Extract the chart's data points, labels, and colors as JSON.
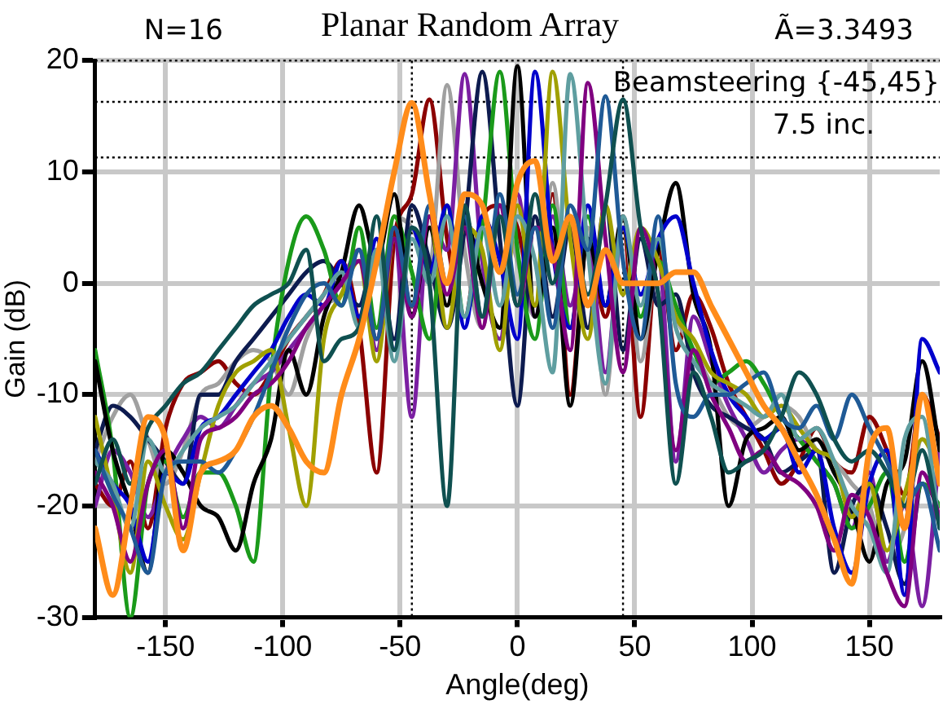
{
  "chart_data": {
    "type": "line",
    "title": "Planar Random Array",
    "xlabel": "Angle(deg)",
    "ylabel": "Gain (dB)",
    "annotations": [
      "N=16",
      "Ã=3.3493",
      "Beamsteering {-45,45}",
      "7.5 inc."
    ],
    "xlim": [
      -180,
      180
    ],
    "xticks": [
      -150,
      -100,
      -50,
      0,
      50,
      100,
      150
    ],
    "ylim": [
      -30,
      20
    ],
    "yticks": [
      -30,
      -20,
      -10,
      0,
      10,
      20
    ],
    "grid": true,
    "legend": false,
    "marker": "none",
    "line_style": "solid",
    "ref_lines": [
      {
        "axis": "y",
        "value": 20,
        "color": "#000000",
        "line_style": "dotted"
      },
      {
        "axis": "y",
        "value": 16.3,
        "color": "#000000",
        "line_style": "dotted"
      },
      {
        "axis": "y",
        "value": 11.3,
        "color": "#000000",
        "line_style": "dotted"
      },
      {
        "axis": "x",
        "value": -45,
        "color": "#000000",
        "line_style": "dotted"
      },
      {
        "axis": "x",
        "value": 45,
        "color": "#000000",
        "line_style": "dotted"
      }
    ],
    "x": [
      -180,
      -172.5,
      -165,
      -157.5,
      -150,
      -142.5,
      -135,
      -127.5,
      -120,
      -112.5,
      -105,
      -97.5,
      -90,
      -82.5,
      -75,
      -67.5,
      -60,
      -52.5,
      -45,
      -37.5,
      -30,
      -22.5,
      -15,
      -7.5,
      0,
      7.5,
      15,
      22.5,
      30,
      37.5,
      45,
      52.5,
      60,
      67.5,
      75,
      82.5,
      90,
      97.5,
      105,
      112.5,
      120,
      127.5,
      135,
      142.5,
      150,
      157.5,
      165,
      172.5,
      180
    ],
    "series": [
      {
        "color": "#8b0000",
        "values": [
          -18,
          -20,
          -16,
          -22,
          -13,
          -9,
          -8,
          -7,
          -9,
          -10,
          -8,
          -5,
          -3,
          -1,
          2,
          -4,
          -17,
          4,
          8,
          16.5,
          4,
          -3,
          6,
          7,
          5,
          -2,
          8,
          -10,
          4,
          -3,
          5,
          -12,
          3,
          -6,
          -1,
          -4,
          -9,
          -12,
          -15,
          -18,
          -16,
          -13,
          -16,
          -17,
          -12,
          -15,
          -19,
          -10,
          -14
        ]
      },
      {
        "color": "#a0a0a0",
        "values": [
          -16,
          -12,
          -10,
          -14,
          -18,
          -15,
          -10,
          -9,
          -7,
          -6,
          -7,
          -10,
          -5,
          -2,
          -1,
          3,
          -5,
          6,
          5,
          2,
          17.8,
          3,
          -4,
          7,
          2,
          -3,
          9,
          -4,
          5,
          -10,
          6,
          -7,
          2,
          -3,
          -6,
          -9,
          -12,
          -13,
          -12,
          -11,
          -12,
          -15,
          -16,
          -18,
          -20,
          -25,
          -22,
          -14,
          -16
        ]
      },
      {
        "color": "#7b1fa2",
        "values": [
          -20,
          -15,
          -17,
          -21,
          -17,
          -14,
          -12,
          -13,
          -11,
          -9,
          -8,
          -6,
          -4,
          -2,
          0,
          3,
          -6,
          4,
          -12,
          6,
          3,
          18.8,
          2,
          -5,
          8,
          -3,
          6,
          -2,
          4,
          -8,
          5,
          -1,
          2,
          -16,
          -3,
          -7,
          -11,
          -14,
          -17,
          -15,
          -14,
          -16,
          -18,
          -22,
          -17,
          -25,
          -20,
          -29,
          -15
        ]
      },
      {
        "color": "#0d1b4f",
        "values": [
          -15,
          -11,
          -12,
          -14,
          -16,
          -18,
          -10,
          -10,
          -7,
          -5,
          -3,
          -1,
          1,
          2,
          0,
          -2,
          3,
          -5,
          7,
          2,
          -4,
          5,
          19,
          4,
          -11,
          6,
          -3,
          5,
          -4,
          7,
          -6,
          4,
          -2,
          -1,
          -8,
          -11,
          -12,
          -13,
          -14,
          -17,
          -16,
          -15,
          -26,
          -20,
          -18,
          -22,
          -27,
          -18,
          -20
        ]
      },
      {
        "color": "#1a9a1a",
        "values": [
          -6,
          -15,
          -30,
          -18,
          -16,
          -21,
          -17,
          -17,
          -20,
          -25,
          -8,
          2,
          6,
          3,
          -2,
          5,
          -4,
          6,
          1,
          -5,
          7,
          -3,
          5,
          19,
          3,
          -5,
          7,
          -4,
          6,
          -2,
          5,
          -3,
          2,
          -2,
          -6,
          -9,
          -8,
          -7,
          -9,
          -12,
          -14,
          -16,
          -18,
          -22,
          -20,
          -17,
          -25,
          -18,
          -20
        ]
      },
      {
        "color": "#000000",
        "values": [
          -7,
          -15,
          -20,
          -26,
          -15,
          -17,
          -20,
          -21,
          -24,
          -18,
          -14,
          -6,
          -10,
          -3,
          1,
          7,
          2,
          8,
          -3,
          5,
          -2,
          6,
          0,
          -4,
          19.5,
          -3,
          5,
          -11,
          4,
          -2,
          6,
          -5,
          3,
          9,
          -1,
          -6,
          -20,
          -14,
          -13,
          -12,
          -15,
          -14,
          -17,
          -20,
          -25,
          -18,
          -16,
          -7,
          -15
        ]
      },
      {
        "color": "#0000cc",
        "values": [
          -15,
          -18,
          -20,
          -25,
          -17,
          -18,
          -13,
          -12,
          -10,
          -8,
          -6,
          -3,
          -1,
          -2,
          2,
          -3,
          4,
          -6,
          5,
          1,
          7,
          -4,
          6,
          2,
          -5,
          19,
          3,
          -4,
          7,
          -2,
          5,
          -1,
          4,
          6,
          0,
          -6,
          -10,
          -12,
          -14,
          -13,
          -17,
          -15,
          -22,
          -26,
          -18,
          -15,
          -28,
          -5,
          -8
        ]
      },
      {
        "color": "#a0a000",
        "values": [
          -12,
          -19,
          -26,
          -16,
          -20,
          -23,
          -17,
          -11,
          -8,
          -7,
          -6,
          -13,
          -20,
          -5,
          -1,
          2,
          -7,
          4,
          -2,
          6,
          -4,
          5,
          3,
          -6,
          7,
          -2,
          19,
          4,
          -5,
          7,
          -1,
          5,
          2,
          -3,
          -5,
          -8,
          -9,
          -10,
          -12,
          -11,
          -13,
          -15,
          -16,
          -21,
          -18,
          -24,
          -19,
          -14,
          -17
        ]
      },
      {
        "color": "#5f9ea0",
        "values": [
          -16,
          -18,
          -22,
          -14,
          -17,
          -15,
          -13,
          -12,
          -11,
          -9,
          -7,
          -5,
          -3,
          -1,
          1,
          -4,
          3,
          -7,
          4,
          0,
          6,
          -3,
          5,
          -2,
          6,
          2,
          -8,
          18.8,
          3,
          -9,
          6,
          -2,
          4,
          -4,
          -7,
          -9,
          -10,
          -11,
          -12,
          -10,
          -14,
          -13,
          -16,
          -20,
          -22,
          -26,
          -14,
          -12,
          -22
        ]
      },
      {
        "color": "#800080",
        "values": [
          -17,
          -20,
          -25,
          -18,
          -15,
          -22,
          -14,
          -13,
          -12,
          -10,
          -9,
          -7,
          -4,
          -2,
          0,
          2,
          -5,
          4,
          -3,
          6,
          -1,
          5,
          -4,
          7,
          -2,
          5,
          3,
          -6,
          18,
          4,
          -8,
          5,
          -1,
          -15,
          -6,
          -10,
          -13,
          -16,
          -15,
          -17,
          -18,
          -20,
          -24,
          -19,
          -21,
          -26,
          -29,
          -17,
          -21
        ]
      },
      {
        "color": "#1f5a96",
        "values": [
          -15,
          -19,
          -22,
          -26,
          -17,
          -16,
          -16,
          -17,
          -15,
          -12,
          -8,
          -4,
          -1,
          0,
          -2,
          3,
          -5,
          5,
          -2,
          7,
          0,
          6,
          -3,
          8,
          -1,
          5,
          -4,
          7,
          3,
          16.8,
          2,
          -5,
          6,
          -9,
          -12,
          -10,
          -10,
          -9,
          -8,
          -12,
          -13,
          -11,
          -14,
          -10,
          -13,
          -16,
          -20,
          -18,
          -24
        ]
      },
      {
        "color": "#0f5050",
        "values": [
          -18,
          -14,
          -18,
          -13,
          -11,
          -9,
          -8,
          -6,
          -4,
          -2,
          -1,
          0,
          3,
          -7,
          -5,
          -4,
          6,
          -6,
          5,
          0,
          -20,
          7,
          -3,
          6,
          -2,
          8,
          0,
          6,
          -1,
          7,
          16.5,
          5,
          -1,
          -18,
          -8,
          -12,
          -17,
          -16,
          -15,
          -12,
          -8,
          -10,
          -14,
          -16,
          -15,
          -17,
          -20,
          -15,
          -22
        ]
      },
      {
        "color": "#ff8c1a",
        "values": [
          -22,
          -28,
          -20,
          -12,
          -14,
          -24,
          -17,
          -16,
          -15,
          -12,
          -11,
          -13,
          -16,
          -17,
          -10,
          -5,
          2,
          10,
          16.2,
          8,
          0,
          8,
          7,
          1,
          9,
          11,
          2,
          6,
          -2,
          3,
          0,
          0,
          0,
          1,
          1,
          -2,
          -5,
          -8,
          -11,
          -13,
          -16,
          -19,
          -23,
          -27,
          -15,
          -13,
          -22,
          -10,
          -18
        ]
      }
    ]
  }
}
